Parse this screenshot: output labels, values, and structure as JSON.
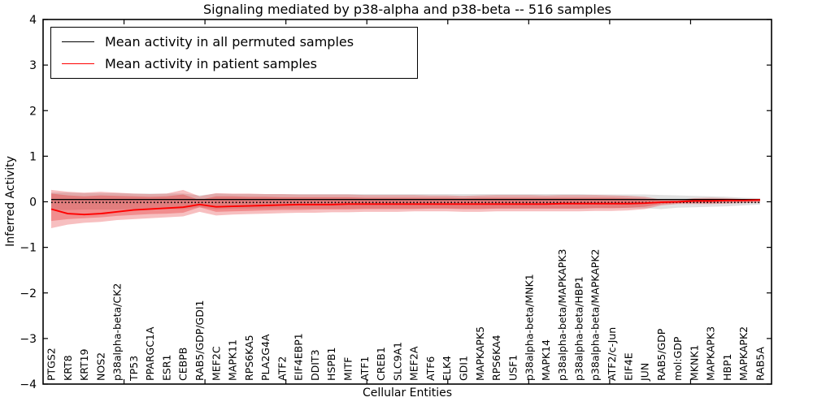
{
  "figure": {
    "title": "Signaling mediated by p38-alpha and p38-beta -- 516 samples",
    "xlabel": "Cellular Entities",
    "ylabel": "Inferred Activity"
  },
  "legend": {
    "entries": [
      {
        "label": "Mean activity in all permuted samples",
        "color": "#000000"
      },
      {
        "label": "Mean activity in patient samples",
        "color": "#ff0000"
      }
    ]
  },
  "colors": {
    "frame": "#000000",
    "background": "#ffffff",
    "permuted_line": "#000000",
    "patient_line": "#ff0000",
    "patient_band": "#e41a1c",
    "permuted_band": "#777777"
  },
  "chart_data": {
    "type": "line",
    "title": "Signaling mediated by p38-alpha and p38-beta -- 516 samples",
    "xlabel": "Cellular Entities",
    "ylabel": "Inferred Activity",
    "ylim": [
      -4,
      4
    ],
    "yticks": [
      4,
      3,
      2,
      1,
      0,
      -1,
      -2,
      -3,
      -4
    ],
    "grid": false,
    "legend_position": "upper left",
    "zero_line": 0,
    "categories": [
      "PTGS2",
      "KRT8",
      "KRT19",
      "NOS2",
      "p38alpha-beta/CK2",
      "TP53",
      "PPARGC1A",
      "ESR1",
      "CEBPB",
      "RAB5/GDP/GDI1",
      "MEF2C",
      "MAPK11",
      "RPS6KA5",
      "PLA2G4A",
      "ATF2",
      "EIF4EBP1",
      "DDIT3",
      "HSPB1",
      "MITF",
      "ATF1",
      "CREB1",
      "SLC9A1",
      "MEF2A",
      "ATF6",
      "ELK4",
      "GDI1",
      "MAPKAPK5",
      "RPS6KA4",
      "USF1",
      "p38alpha-beta/MNK1",
      "MAPK14",
      "p38alpha-beta/MAPKAPK3",
      "p38alpha-beta/HBP1",
      "p38alpha-beta/MAPKAPK2",
      "ATF2/c-Jun",
      "EIF4E",
      "JUN",
      "RAB5/GDP",
      "mol:GDP",
      "MKNK1",
      "MAPKAPK3",
      "HBP1",
      "MAPKAPK2",
      "RAB5A"
    ],
    "series": [
      {
        "name": "Mean activity in all permuted samples",
        "color": "#000000",
        "values": [
          0.05,
          0.05,
          0.05,
          0.05,
          0.05,
          0.05,
          0.05,
          0.05,
          0.05,
          0.05,
          0.05,
          0.05,
          0.05,
          0.05,
          0.05,
          0.05,
          0.05,
          0.05,
          0.05,
          0.05,
          0.05,
          0.05,
          0.05,
          0.05,
          0.05,
          0.05,
          0.05,
          0.05,
          0.05,
          0.05,
          0.05,
          0.05,
          0.05,
          0.05,
          0.05,
          0.05,
          0.05,
          0.05,
          0.05,
          0.05,
          0.05,
          0.05,
          0.05,
          0.05
        ]
      },
      {
        "name": "Mean activity in patient samples",
        "color": "#ff0000",
        "values": [
          -0.16,
          -0.26,
          -0.28,
          -0.26,
          -0.22,
          -0.18,
          -0.16,
          -0.14,
          -0.12,
          -0.06,
          -0.11,
          -0.1,
          -0.09,
          -0.08,
          -0.07,
          -0.06,
          -0.06,
          -0.06,
          -0.05,
          -0.05,
          -0.05,
          -0.05,
          -0.05,
          -0.05,
          -0.05,
          -0.05,
          -0.05,
          -0.05,
          -0.05,
          -0.05,
          -0.05,
          -0.04,
          -0.04,
          -0.04,
          -0.04,
          -0.04,
          -0.03,
          -0.01,
          0.0,
          0.02,
          0.02,
          0.03,
          0.03,
          0.04
        ]
      }
    ],
    "bands": [
      {
        "name": "permuted-std-band",
        "color": "#777777",
        "opacity": 0.22,
        "upper": [
          0.2,
          0.2,
          0.19,
          0.19,
          0.19,
          0.18,
          0.18,
          0.18,
          0.18,
          0.14,
          0.18,
          0.17,
          0.17,
          0.17,
          0.17,
          0.17,
          0.17,
          0.17,
          0.17,
          0.17,
          0.17,
          0.17,
          0.17,
          0.17,
          0.17,
          0.17,
          0.17,
          0.17,
          0.17,
          0.17,
          0.17,
          0.17,
          0.17,
          0.16,
          0.16,
          0.16,
          0.16,
          0.15,
          0.14,
          0.13,
          0.12,
          0.11,
          0.09,
          0.08
        ],
        "lower": [
          -0.18,
          -0.18,
          -0.17,
          -0.17,
          -0.17,
          -0.16,
          -0.16,
          -0.16,
          -0.16,
          -0.12,
          -0.16,
          -0.15,
          -0.15,
          -0.15,
          -0.15,
          -0.15,
          -0.15,
          -0.15,
          -0.15,
          -0.15,
          -0.15,
          -0.15,
          -0.15,
          -0.15,
          -0.15,
          -0.15,
          -0.15,
          -0.15,
          -0.15,
          -0.15,
          -0.15,
          -0.15,
          -0.15,
          -0.14,
          -0.14,
          -0.14,
          -0.14,
          -0.16,
          -0.13,
          -0.12,
          -0.11,
          -0.1,
          -0.08,
          -0.06
        ]
      },
      {
        "name": "patient-outer-band",
        "color": "#e41a1c",
        "opacity": 0.28,
        "upper": [
          0.26,
          0.22,
          0.2,
          0.22,
          0.2,
          0.18,
          0.17,
          0.18,
          0.26,
          0.12,
          0.19,
          0.18,
          0.18,
          0.17,
          0.17,
          0.16,
          0.16,
          0.16,
          0.16,
          0.15,
          0.15,
          0.15,
          0.15,
          0.14,
          0.14,
          0.13,
          0.14,
          0.15,
          0.15,
          0.15,
          0.14,
          0.15,
          0.15,
          0.15,
          0.14,
          0.13,
          0.11,
          0.05,
          0.04,
          0.08,
          0.09,
          0.08,
          0.06,
          0.06
        ],
        "lower": [
          -0.58,
          -0.5,
          -0.46,
          -0.44,
          -0.4,
          -0.38,
          -0.36,
          -0.34,
          -0.32,
          -0.22,
          -0.3,
          -0.28,
          -0.27,
          -0.26,
          -0.25,
          -0.24,
          -0.24,
          -0.23,
          -0.23,
          -0.22,
          -0.22,
          -0.22,
          -0.21,
          -0.21,
          -0.21,
          -0.22,
          -0.22,
          -0.21,
          -0.21,
          -0.21,
          -0.21,
          -0.21,
          -0.21,
          -0.2,
          -0.2,
          -0.19,
          -0.16,
          -0.08,
          -0.05,
          -0.05,
          -0.05,
          -0.04,
          -0.03,
          -0.02
        ]
      },
      {
        "name": "patient-inner-band",
        "color": "#e41a1c",
        "opacity": 0.3,
        "upper": [
          0.18,
          0.14,
          0.12,
          0.14,
          0.13,
          0.12,
          0.11,
          0.12,
          0.16,
          0.04,
          0.12,
          0.12,
          0.11,
          0.11,
          0.1,
          0.1,
          0.1,
          0.1,
          0.1,
          0.09,
          0.09,
          0.09,
          0.09,
          0.09,
          0.09,
          0.08,
          0.09,
          0.09,
          0.09,
          0.09,
          0.09,
          0.09,
          0.09,
          0.09,
          0.09,
          0.08,
          0.07,
          0.03,
          0.02,
          0.05,
          0.06,
          0.05,
          0.04,
          0.04
        ],
        "lower": [
          -0.42,
          -0.38,
          -0.36,
          -0.34,
          -0.31,
          -0.29,
          -0.27,
          -0.26,
          -0.24,
          -0.12,
          -0.22,
          -0.21,
          -0.2,
          -0.19,
          -0.18,
          -0.18,
          -0.17,
          -0.17,
          -0.17,
          -0.16,
          -0.16,
          -0.16,
          -0.16,
          -0.15,
          -0.15,
          -0.16,
          -0.16,
          -0.15,
          -0.15,
          -0.15,
          -0.15,
          -0.15,
          -0.15,
          -0.14,
          -0.14,
          -0.13,
          -0.11,
          -0.05,
          -0.03,
          -0.02,
          -0.02,
          -0.01,
          0.0,
          0.01
        ]
      }
    ]
  }
}
